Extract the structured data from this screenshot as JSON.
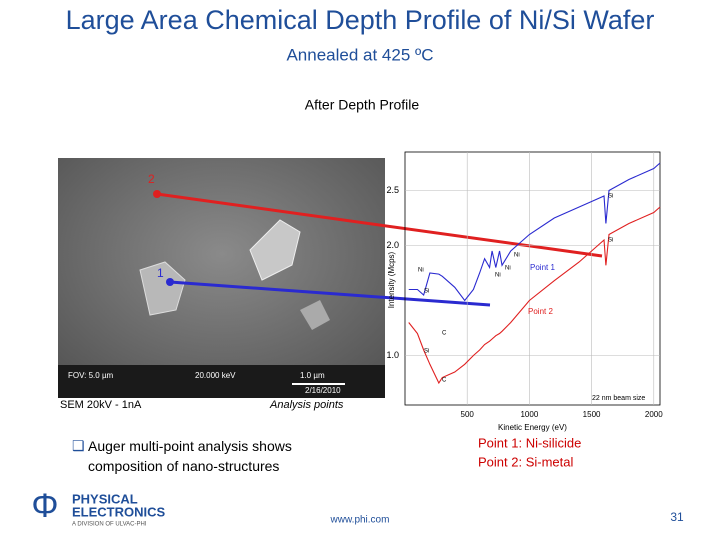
{
  "header": {
    "title": "Large Area Chemical Depth Profile of Ni/Si Wafer",
    "subtitle": "Annealed at 425 ºC"
  },
  "section_title": "After Depth Profile",
  "sem": {
    "point_labels": [
      "2",
      "1"
    ],
    "info": [
      "FOV: 5.0 µm",
      "20.000 keV",
      "1.0 µm",
      "2/16/2010"
    ],
    "caption": "SEM   20kV - 1nA",
    "points_caption": "Analysis points"
  },
  "chart_data": {
    "type": "line",
    "x": [
      30,
      100,
      150,
      200,
      272,
      300,
      400,
      480,
      550,
      600,
      640,
      680,
      700,
      730,
      760,
      780,
      850,
      1000,
      1200,
      1400,
      1500,
      1600,
      1615,
      1640,
      1800,
      2000,
      2050
    ],
    "series": [
      {
        "name": "Point 1",
        "color": "#2a2ad0",
        "values": [
          1.6,
          1.6,
          1.55,
          1.75,
          1.74,
          1.72,
          1.62,
          1.5,
          1.6,
          1.75,
          1.88,
          1.8,
          1.95,
          1.8,
          1.95,
          1.82,
          1.95,
          2.1,
          2.25,
          2.35,
          2.4,
          2.45,
          2.2,
          2.5,
          2.6,
          2.7,
          2.75
        ]
      },
      {
        "name": "Point 2",
        "color": "#e02020",
        "values": [
          1.3,
          1.2,
          1.05,
          0.92,
          0.75,
          0.8,
          0.85,
          0.92,
          1.0,
          1.05,
          1.1,
          1.13,
          1.15,
          1.18,
          1.2,
          1.22,
          1.3,
          1.5,
          1.68,
          1.85,
          1.95,
          2.05,
          1.82,
          2.1,
          2.2,
          2.3,
          2.35
        ]
      }
    ],
    "xlim": [
      0,
      2050
    ],
    "ylim": [
      0.55,
      2.85
    ],
    "xticks": [
      500,
      1000,
      1500,
      2000
    ],
    "yticks": [
      {
        "value": 1,
        "label": "1.0"
      },
      {
        "value": 2,
        "label": "2.0"
      },
      2.5
    ],
    "grid": true,
    "x_label": "Kinetic Energy (eV)",
    "y_label": "Intensity (Mcps)",
    "annotations": [
      "Si",
      "Si",
      "Ni",
      "Ni",
      "Ni",
      "Si",
      "C",
      "Si",
      "C",
      "Ni",
      "22 nm beam size"
    ]
  },
  "bullet": "Auger multi-point analysis shows composition of nano-structures",
  "notes": [
    "Point 1: Ni-silicide",
    "Point 2: Si-metal"
  ],
  "footer": {
    "logo_symbol": "Φ",
    "logo_line1": "PHYSICAL",
    "logo_line2": "ELECTRONICS",
    "logo_line3": "A DIVISION OF ULVAC-PHI",
    "url": "www.phi.com",
    "page": "31"
  }
}
